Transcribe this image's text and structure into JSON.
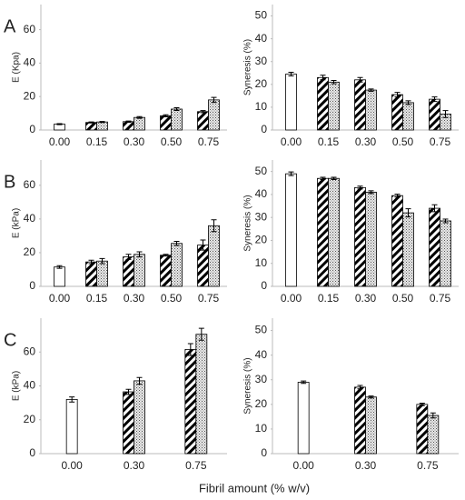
{
  "chart_data": [
    {
      "type": "bar",
      "label": "A",
      "ylabel": "E (Kpa)",
      "categories": [
        "0.00",
        "0.15",
        "0.30",
        "0.50",
        "0.75"
      ],
      "ylim": [
        0,
        75
      ],
      "yticks": [
        0,
        20,
        40,
        60
      ],
      "series": [
        {
          "pattern": "plain",
          "values": [
            3.5,
            null,
            null,
            null,
            null
          ],
          "errors": [
            0.3,
            null,
            null,
            null,
            null
          ]
        },
        {
          "pattern": "hatch",
          "values": [
            null,
            4.5,
            5,
            8.5,
            11
          ],
          "errors": [
            null,
            0.3,
            0.4,
            0.6,
            0.6
          ]
        },
        {
          "pattern": "dots",
          "values": [
            null,
            4.8,
            7.5,
            12.5,
            18
          ],
          "errors": [
            null,
            0.3,
            0.5,
            0.8,
            1.5
          ]
        }
      ]
    },
    {
      "type": "bar",
      "ylabel": "Syneresis  (%)",
      "categories": [
        "0.00",
        "0.15",
        "0.30",
        "0.50",
        "0.75"
      ],
      "ylim": [
        0,
        55
      ],
      "yticks": [
        0,
        10,
        20,
        30,
        40,
        50
      ],
      "series": [
        {
          "pattern": "plain",
          "values": [
            24.5,
            null,
            null,
            null,
            null
          ],
          "errors": [
            0.8,
            null,
            null,
            null,
            null
          ]
        },
        {
          "pattern": "hatch",
          "values": [
            null,
            23,
            22,
            15.5,
            13.5
          ],
          "errors": [
            null,
            1,
            1,
            1,
            1
          ]
        },
        {
          "pattern": "dots",
          "values": [
            null,
            21,
            17.5,
            12,
            7
          ],
          "errors": [
            null,
            0.7,
            0.5,
            0.8,
            1.5
          ]
        }
      ]
    },
    {
      "type": "bar",
      "label": "B",
      "ylabel": "E (kPa)",
      "categories": [
        "0.00",
        "0.15",
        "0.30",
        "0.50",
        "0.75"
      ],
      "ylim": [
        0,
        75
      ],
      "yticks": [
        0,
        20,
        40,
        60
      ],
      "series": [
        {
          "pattern": "plain",
          "values": [
            11.5,
            null,
            null,
            null,
            null
          ],
          "errors": [
            0.8,
            null,
            null,
            null,
            null
          ]
        },
        {
          "pattern": "hatch",
          "values": [
            null,
            14.5,
            17.5,
            18.5,
            24.5
          ],
          "errors": [
            null,
            1,
            1.5,
            0.5,
            3
          ]
        },
        {
          "pattern": "dots",
          "values": [
            null,
            15,
            19,
            25.5,
            36
          ],
          "errors": [
            null,
            1.5,
            1.5,
            1.2,
            3.5
          ]
        }
      ]
    },
    {
      "type": "bar",
      "ylabel": "Syneresis (%)",
      "categories": [
        "0.00",
        "0.15",
        "0.30",
        "0.50",
        "0.75"
      ],
      "ylim": [
        0,
        55
      ],
      "yticks": [
        0,
        10,
        20,
        30,
        40,
        50
      ],
      "series": [
        {
          "pattern": "plain",
          "values": [
            49,
            null,
            null,
            null,
            null
          ],
          "errors": [
            0.8,
            null,
            null,
            null,
            null
          ]
        },
        {
          "pattern": "hatch",
          "values": [
            null,
            47,
            43,
            39.5,
            34
          ],
          "errors": [
            null,
            0.5,
            0.6,
            0.6,
            1.5
          ]
        },
        {
          "pattern": "dots",
          "values": [
            null,
            47,
            41,
            32,
            28.5
          ],
          "errors": [
            null,
            0.5,
            0.6,
            1.8,
            0.8
          ]
        }
      ]
    },
    {
      "type": "bar",
      "label": "C",
      "ylabel": "E (kPa)",
      "categories": [
        "0.00",
        "0.30",
        "0.75"
      ],
      "ylim": [
        0,
        80
      ],
      "yticks": [
        0,
        20,
        40,
        60
      ],
      "series": [
        {
          "pattern": "plain",
          "values": [
            32,
            null,
            null
          ],
          "errors": [
            1.5,
            null,
            null
          ]
        },
        {
          "pattern": "hatch",
          "values": [
            null,
            36.5,
            61.5
          ],
          "errors": [
            null,
            1.5,
            3.5
          ]
        },
        {
          "pattern": "dots",
          "values": [
            null,
            43,
            70.5
          ],
          "errors": [
            null,
            2,
            3.5
          ]
        }
      ]
    },
    {
      "type": "bar",
      "ylabel": "Syneresis (%)",
      "categories": [
        "0.00",
        "0.30",
        "0.75"
      ],
      "ylim": [
        0,
        55
      ],
      "yticks": [
        0,
        10,
        20,
        30,
        40,
        50
      ],
      "series": [
        {
          "pattern": "plain",
          "values": [
            29,
            null,
            null
          ],
          "errors": [
            0.5,
            null,
            null
          ]
        },
        {
          "pattern": "hatch",
          "values": [
            null,
            27,
            20
          ],
          "errors": [
            null,
            0.7,
            0.5
          ]
        },
        {
          "pattern": "dots",
          "values": [
            null,
            23,
            15.5
          ],
          "errors": [
            null,
            0.4,
            1
          ]
        }
      ]
    }
  ],
  "xlabel": "Fibril amount (% w/v)"
}
